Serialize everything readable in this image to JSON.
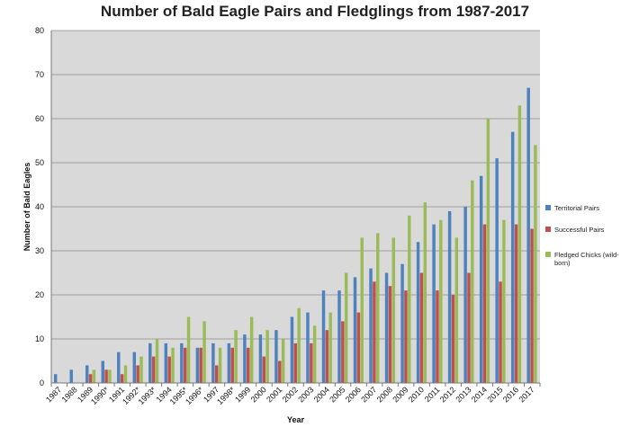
{
  "chart_data": {
    "type": "bar",
    "title": "Number of Bald Eagle Pairs and Fledglings from 1987-2017",
    "xlabel": "Year",
    "ylabel": "Number of Bald Eagles",
    "ylim": [
      0,
      80
    ],
    "yticks": [
      0,
      10,
      20,
      30,
      40,
      50,
      60,
      70,
      80
    ],
    "grid": "horizontal",
    "legend_position": "right",
    "categories": [
      "1987",
      "1988",
      "1989",
      "1990*",
      "1991",
      "1992*",
      "1993*",
      "1994",
      "1995*",
      "1996*",
      "1997",
      "1998*",
      "1999",
      "2000",
      "2001",
      "2002",
      "2003",
      "2004",
      "2005",
      "2006",
      "2007",
      "2008",
      "2009",
      "2010",
      "2011",
      "2012",
      "2013",
      "2014",
      "2015",
      "2016",
      "2017"
    ],
    "series": [
      {
        "name": "Territorial Pairs",
        "color": "#4f81bd",
        "values": [
          2,
          3,
          4,
          5,
          7,
          7,
          9,
          9,
          9,
          8,
          9,
          9,
          11,
          11,
          12,
          15,
          16,
          21,
          21,
          24,
          26,
          25,
          27,
          32,
          36,
          39,
          40,
          47,
          51,
          57,
          67
        ]
      },
      {
        "name": "Successful Pairs",
        "color": "#c0504d",
        "values": [
          0,
          0,
          2,
          3,
          2,
          4,
          6,
          6,
          8,
          8,
          4,
          8,
          8,
          6,
          5,
          9,
          9,
          12,
          14,
          16,
          23,
          22,
          21,
          25,
          21,
          20,
          25,
          36,
          23,
          36,
          35
        ]
      },
      {
        "name": "Fledged Chicks (wild-born)",
        "legend_lines": [
          "Fledged Chicks (wild-",
          "born)"
        ],
        "color": "#9bbb59",
        "values": [
          0,
          0,
          3,
          3,
          4,
          6,
          10,
          8,
          15,
          14,
          8,
          12,
          15,
          12,
          10,
          17,
          13,
          16,
          25,
          33,
          34,
          33,
          38,
          41,
          37,
          33,
          46,
          60,
          37,
          63,
          54
        ]
      }
    ]
  },
  "colors": {
    "plot_background": "#d9d9d9",
    "gridline": "#8c8c8c"
  }
}
